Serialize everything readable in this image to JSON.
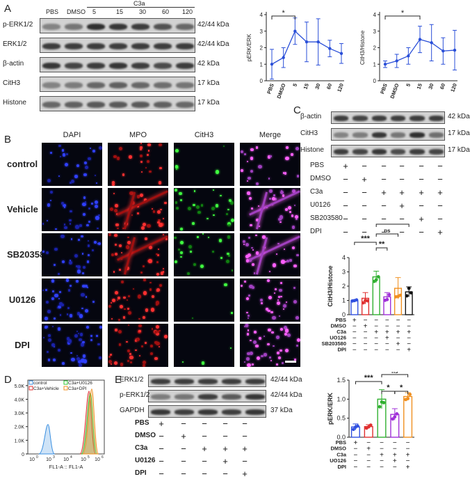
{
  "panels": {
    "A": "A",
    "B": "B",
    "C": "C",
    "D": "D",
    "E": "E"
  },
  "panelA": {
    "blot": {
      "lane_labels": [
        "PBS",
        "DMSO",
        "5",
        "15",
        "30",
        "60",
        "120"
      ],
      "group_label": "C3a",
      "rows": [
        {
          "name": "p-ERK1/2",
          "size": "42/44 kDa"
        },
        {
          "name": "ERK1/2",
          "size": "42/44 kDa"
        },
        {
          "name": "β-actin",
          "size": "42 kDa"
        },
        {
          "name": "CitH3",
          "size": "17 kDa"
        },
        {
          "name": "Histone",
          "size": "17 kDa"
        }
      ]
    },
    "chart1": {
      "ylabel": "pERK/ERK",
      "ticks": [
        "0",
        "1",
        "2",
        "3",
        "4"
      ],
      "star": "*"
    },
    "chart2": {
      "ylabel": "CitH3/Histone",
      "ticks": [
        "0",
        "1",
        "2",
        "3",
        "4"
      ],
      "star": "*"
    }
  },
  "panelB": {
    "columns": [
      "DAPI",
      "MPO",
      "CitH3",
      "Merge"
    ],
    "rows": [
      "control",
      "Vehicle",
      "SB203580",
      "U0126",
      "DPI"
    ]
  },
  "panelC": {
    "blot_rows": [
      {
        "name": "β-actin",
        "size": "42 kDa"
      },
      {
        "name": "CitH3",
        "size": "17 kDa"
      },
      {
        "name": "Histone",
        "size": "17 kDa"
      }
    ],
    "treat_rows": [
      {
        "label": "PBS",
        "signs": [
          "+",
          "−",
          "−",
          "−",
          "−",
          "−"
        ]
      },
      {
        "label": "DMSO",
        "signs": [
          "−",
          "+",
          "−",
          "−",
          "−",
          "−"
        ]
      },
      {
        "label": "C3a",
        "signs": [
          "−",
          "−",
          "+",
          "+",
          "+",
          "+"
        ]
      },
      {
        "label": "U0126",
        "signs": [
          "−",
          "−",
          "−",
          "+",
          "−",
          "−"
        ]
      },
      {
        "label": "SB203580",
        "signs": [
          "−",
          "−",
          "−",
          "−",
          "+",
          "−"
        ]
      },
      {
        "label": "DPI",
        "signs": [
          "−",
          "−",
          "−",
          "−",
          "−",
          "+"
        ]
      }
    ],
    "chart": {
      "ylabel": "CitH3/Histone",
      "ticks": [
        "0",
        "1",
        "2",
        "3",
        "4"
      ],
      "sig": [
        {
          "text": "***"
        },
        {
          "text": "**"
        },
        {
          "text": "ns"
        },
        {
          "text": "*"
        }
      ],
      "table": [
        {
          "label": "PBS",
          "signs": [
            "+",
            "−",
            "−",
            "−",
            "−",
            "−"
          ]
        },
        {
          "label": "DMSO",
          "signs": [
            "−",
            "+",
            "−",
            "−",
            "−",
            "−"
          ]
        },
        {
          "label": "C3a",
          "signs": [
            "−",
            "−",
            "+",
            "+",
            "+",
            "+"
          ]
        },
        {
          "label": "UO126",
          "signs": [
            "−",
            "−",
            "−",
            "+",
            "−",
            "−"
          ]
        },
        {
          "label": "SB203580",
          "signs": [
            "−",
            "−",
            "−",
            "−",
            "+",
            "−"
          ]
        },
        {
          "label": "DPI",
          "signs": [
            "−",
            "−",
            "−",
            "−",
            "−",
            "+"
          ]
        }
      ]
    }
  },
  "panelD": {
    "legend": [
      "control",
      "C3a+U0126",
      "C3a+Vehicle",
      "C3a+DPI"
    ],
    "legend_colors": [
      "#3a8fe0",
      "#32c832",
      "#e03030",
      "#f09020"
    ],
    "yticks": [
      "0",
      "1.0K",
      "2.0K",
      "3.0K",
      "4.0K",
      "5.0K"
    ],
    "xlabel": "FL1-A :: FL1-A",
    "xticks": [
      "10",
      "10",
      "10",
      "10",
      "10"
    ],
    "xexp": [
      "0",
      "3",
      "4",
      "5",
      "6"
    ]
  },
  "panelE": {
    "blot_rows": [
      {
        "name": "ERK1/2",
        "size": "42/44 kDa"
      },
      {
        "name": "p-ERK1/2",
        "size": "42/44 kDa"
      },
      {
        "name": "GAPDH",
        "size": "37 kDa"
      }
    ],
    "treat_rows": [
      {
        "label": "PBS",
        "signs": [
          "+",
          "−",
          "−",
          "−",
          "−"
        ]
      },
      {
        "label": "DMSO",
        "signs": [
          "−",
          "+",
          "−",
          "−",
          "−"
        ]
      },
      {
        "label": "C3a",
        "signs": [
          "−",
          "−",
          "+",
          "+",
          "+"
        ]
      },
      {
        "label": "U0126",
        "signs": [
          "−",
          "−",
          "−",
          "+",
          "−"
        ]
      },
      {
        "label": "DPI",
        "signs": [
          "−",
          "−",
          "−",
          "−",
          "+"
        ]
      }
    ],
    "chart": {
      "ylabel": "pERK/ERK",
      "ticks": [
        "0.0",
        "0.5",
        "1.0",
        "1.5"
      ],
      "sig": [
        {
          "text": "***"
        },
        {
          "text": "ns"
        },
        {
          "text": "*"
        },
        {
          "text": "*"
        }
      ],
      "table": [
        {
          "label": "PBS",
          "signs": [
            "+",
            "−",
            "−",
            "−",
            "−"
          ]
        },
        {
          "label": "DMSO",
          "signs": [
            "−",
            "+",
            "−",
            "−",
            "−"
          ]
        },
        {
          "label": "C3a",
          "signs": [
            "−",
            "−",
            "+",
            "+",
            "+"
          ]
        },
        {
          "label": "UO126",
          "signs": [
            "−",
            "−",
            "−",
            "+",
            "−"
          ]
        },
        {
          "label": "DPI",
          "signs": [
            "−",
            "−",
            "−",
            "−",
            "+"
          ]
        }
      ]
    }
  },
  "chart_data": [
    {
      "type": "line",
      "xlabel": "",
      "ylabel": "pERK/ERK",
      "categories": [
        "PBS",
        "DMSO",
        "5",
        "15",
        "30",
        "60",
        "120"
      ],
      "series": [
        {
          "values": [
            1.0,
            1.4,
            3.0,
            2.35,
            2.35,
            1.95,
            1.65
          ],
          "errors": [
            0.9,
            0.6,
            0.8,
            1.2,
            1.4,
            0.5,
            0.6
          ]
        }
      ],
      "ylim": [
        0,
        4
      ],
      "color": "#2a4fd8"
    },
    {
      "type": "line",
      "xlabel": "",
      "ylabel": "CitH3/Histone",
      "categories": [
        "PBS",
        "DMSO",
        "5",
        "15",
        "30",
        "60",
        "120"
      ],
      "series": [
        {
          "values": [
            1.0,
            1.2,
            1.5,
            2.5,
            2.3,
            1.8,
            1.85
          ],
          "errors": [
            0.2,
            0.4,
            0.5,
            0.8,
            1.1,
            0.8,
            1.2
          ]
        }
      ],
      "ylim": [
        0,
        4
      ],
      "color": "#2a4fd8"
    },
    {
      "type": "bar",
      "xlabel": "",
      "ylabel": "CitH3/Histone",
      "categories": [
        "PBS",
        "DMSO",
        "C3a",
        "C3a+UO126",
        "C3a+SB203580",
        "C3a+DPI"
      ],
      "values": [
        1.0,
        1.15,
        2.65,
        1.25,
        1.85,
        1.6
      ],
      "errors": [
        0.05,
        0.4,
        0.4,
        0.3,
        0.75,
        0.35
      ],
      "colors": [
        "#3050e0",
        "#e03030",
        "#30b030",
        "#a030d8",
        "#f09020",
        "#111111"
      ],
      "ylim": [
        0,
        4
      ]
    },
    {
      "type": "bar",
      "xlabel": "",
      "ylabel": "pERK/ERK",
      "categories": [
        "PBS",
        "DMSO",
        "C3a",
        "C3a+UO126",
        "C3a+DPI"
      ],
      "values": [
        0.27,
        0.28,
        1.0,
        0.6,
        1.07
      ],
      "errors": [
        0.08,
        0.05,
        0.25,
        0.15,
        0.1
      ],
      "colors": [
        "#3050e0",
        "#e03030",
        "#30b030",
        "#a030d8",
        "#f09020"
      ],
      "ylim": [
        0,
        1.5
      ]
    }
  ]
}
